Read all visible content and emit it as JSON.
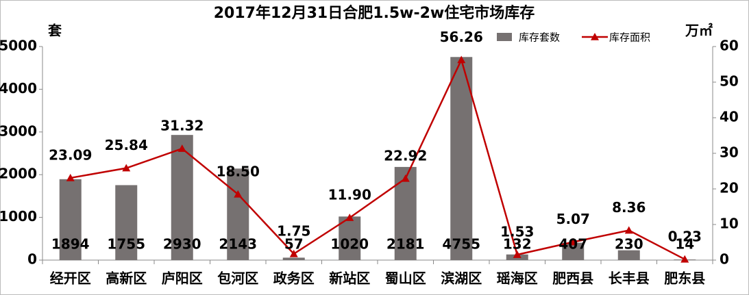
{
  "chart_data": {
    "type": "combo",
    "title": "2017年12月31日合肥1.5w-2w住宅市场库存",
    "y_label": "套",
    "y2_label": "万㎡",
    "categories": [
      "经开区",
      "高新区",
      "庐阳区",
      "包河区",
      "政务区",
      "新站区",
      "蜀山区",
      "滨湖区",
      "瑶海区",
      "肥西县",
      "长丰县",
      "肥东县"
    ],
    "series": [
      {
        "name": "库存套数",
        "type": "bar",
        "color": "#767171",
        "values": [
          1894,
          1755,
          2930,
          2143,
          57,
          1020,
          2181,
          4755,
          132,
          407,
          230,
          14
        ]
      },
      {
        "name": "库存面积",
        "type": "line",
        "axis": "y2",
        "color": "#c00000",
        "values": [
          23.09,
          25.84,
          31.32,
          18.5,
          1.75,
          11.9,
          22.92,
          56.26,
          1.53,
          5.07,
          8.36,
          0.23
        ],
        "value_labels": [
          "23.09",
          "25.84",
          "31.32",
          "18.50",
          "1.75",
          "11.90",
          "22.92",
          "56.26",
          "1.53",
          "5.07",
          "8.36",
          "0.23"
        ]
      }
    ],
    "ylim": [
      0,
      5000
    ],
    "yticks": [
      0,
      1000,
      2000,
      3000,
      4000,
      5000
    ],
    "y2lim": [
      0,
      60
    ],
    "y2ticks": [
      0,
      10,
      20,
      30,
      40,
      50,
      60
    ],
    "legend": "top-right"
  }
}
